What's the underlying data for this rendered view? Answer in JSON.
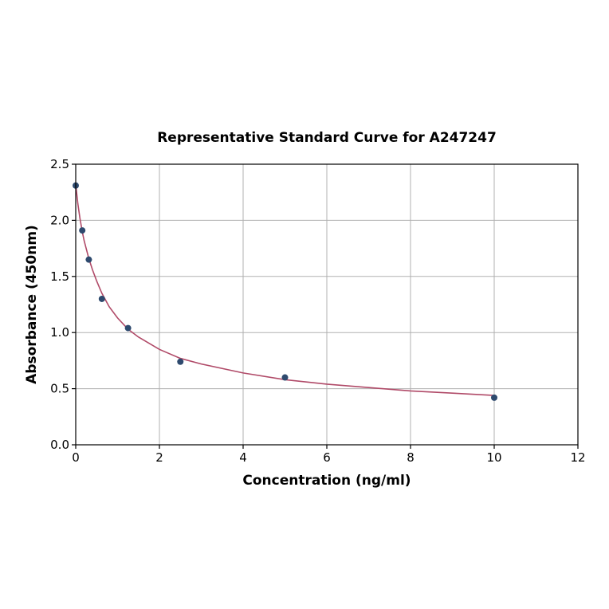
{
  "chart_data": {
    "type": "scatter",
    "title": "Representative Standard Curve for A247247",
    "xlabel": "Concentration (ng/ml)",
    "ylabel": "Absorbance (450nm)",
    "xlim": [
      0,
      12
    ],
    "ylim": [
      0,
      2.5
    ],
    "xticks": [
      0,
      2,
      4,
      6,
      8,
      10,
      12
    ],
    "yticks": [
      0.0,
      0.5,
      1.0,
      1.5,
      2.0,
      2.5
    ],
    "xtick_labels": [
      "0",
      "2",
      "4",
      "6",
      "8",
      "10",
      "12"
    ],
    "ytick_labels": [
      "0.0",
      "0.5",
      "1.0",
      "1.5",
      "2.0",
      "2.5"
    ],
    "grid": true,
    "series": [
      {
        "kind": "points",
        "x": [
          0,
          0.156,
          0.3125,
          0.625,
          1.25,
          2.5,
          5,
          10
        ],
        "y": [
          2.31,
          1.91,
          1.65,
          1.3,
          1.04,
          0.74,
          0.6,
          0.42
        ],
        "color": "#2e4a6e"
      },
      {
        "kind": "fit-curve",
        "x": [
          0,
          0.05,
          0.1,
          0.156,
          0.2,
          0.3125,
          0.4,
          0.5,
          0.625,
          0.8,
          1.0,
          1.25,
          1.5,
          2.0,
          2.5,
          3.0,
          4.0,
          5.0,
          6.0,
          7.0,
          8.0,
          9.0,
          10.0
        ],
        "y": [
          2.32,
          2.15,
          2.02,
          1.9,
          1.82,
          1.66,
          1.56,
          1.46,
          1.35,
          1.23,
          1.13,
          1.03,
          0.96,
          0.85,
          0.77,
          0.72,
          0.64,
          0.58,
          0.54,
          0.51,
          0.48,
          0.46,
          0.44
        ],
        "color": "#b04a68"
      }
    ]
  }
}
